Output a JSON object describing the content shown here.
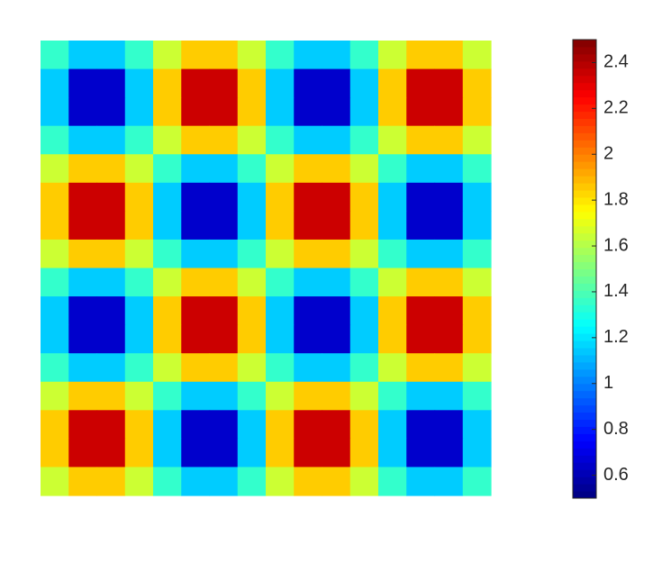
{
  "chart_data": {
    "type": "heatmap",
    "colormap": "jet",
    "clim": [
      0.5,
      2.5
    ],
    "cticks": [
      0.6,
      0.8,
      1,
      1.2,
      1.4,
      1.6,
      1.8,
      2,
      2.2,
      2.4
    ],
    "z": [
      [
        1.35,
        1.15,
        1.15,
        1.35,
        1.65,
        1.85,
        1.85,
        1.65,
        1.35,
        1.15,
        1.15,
        1.35,
        1.65,
        1.85,
        1.85,
        1.65
      ],
      [
        1.15,
        0.65,
        0.65,
        1.15,
        1.85,
        2.35,
        2.35,
        1.85,
        1.15,
        0.65,
        0.65,
        1.15,
        1.85,
        2.35,
        2.35,
        1.85
      ],
      [
        1.15,
        0.65,
        0.65,
        1.15,
        1.85,
        2.35,
        2.35,
        1.85,
        1.15,
        0.65,
        0.65,
        1.15,
        1.85,
        2.35,
        2.35,
        1.85
      ],
      [
        1.35,
        1.15,
        1.15,
        1.35,
        1.65,
        1.85,
        1.85,
        1.65,
        1.35,
        1.15,
        1.15,
        1.35,
        1.65,
        1.85,
        1.85,
        1.65
      ],
      [
        1.65,
        1.85,
        1.85,
        1.65,
        1.35,
        1.15,
        1.15,
        1.35,
        1.65,
        1.85,
        1.85,
        1.65,
        1.35,
        1.15,
        1.15,
        1.35
      ],
      [
        1.85,
        2.35,
        2.35,
        1.85,
        1.15,
        0.65,
        0.65,
        1.15,
        1.85,
        2.35,
        2.35,
        1.85,
        1.15,
        0.65,
        0.65,
        1.15
      ],
      [
        1.85,
        2.35,
        2.35,
        1.85,
        1.15,
        0.65,
        0.65,
        1.15,
        1.85,
        2.35,
        2.35,
        1.85,
        1.15,
        0.65,
        0.65,
        1.15
      ],
      [
        1.65,
        1.85,
        1.85,
        1.65,
        1.35,
        1.15,
        1.15,
        1.35,
        1.65,
        1.85,
        1.85,
        1.65,
        1.35,
        1.15,
        1.15,
        1.35
      ],
      [
        1.35,
        1.15,
        1.15,
        1.35,
        1.65,
        1.85,
        1.85,
        1.65,
        1.35,
        1.15,
        1.15,
        1.35,
        1.65,
        1.85,
        1.85,
        1.65
      ],
      [
        1.15,
        0.65,
        0.65,
        1.15,
        1.85,
        2.35,
        2.35,
        1.85,
        1.15,
        0.65,
        0.65,
        1.15,
        1.85,
        2.35,
        2.35,
        1.85
      ],
      [
        1.15,
        0.65,
        0.65,
        1.15,
        1.85,
        2.35,
        2.35,
        1.85,
        1.15,
        0.65,
        0.65,
        1.15,
        1.85,
        2.35,
        2.35,
        1.85
      ],
      [
        1.35,
        1.15,
        1.15,
        1.35,
        1.65,
        1.85,
        1.85,
        1.65,
        1.35,
        1.15,
        1.15,
        1.35,
        1.65,
        1.85,
        1.85,
        1.65
      ],
      [
        1.65,
        1.85,
        1.85,
        1.65,
        1.35,
        1.15,
        1.15,
        1.35,
        1.65,
        1.85,
        1.85,
        1.65,
        1.35,
        1.15,
        1.15,
        1.35
      ],
      [
        1.85,
        2.35,
        2.35,
        1.85,
        1.15,
        0.65,
        0.65,
        1.15,
        1.85,
        2.35,
        2.35,
        1.85,
        1.15,
        0.65,
        0.65,
        1.15
      ],
      [
        1.85,
        2.35,
        2.35,
        1.85,
        1.15,
        0.65,
        0.65,
        1.15,
        1.85,
        2.35,
        2.35,
        1.85,
        1.15,
        0.65,
        0.65,
        1.15
      ],
      [
        1.65,
        1.85,
        1.85,
        1.65,
        1.35,
        1.15,
        1.15,
        1.35,
        1.65,
        1.85,
        1.85,
        1.65,
        1.35,
        1.15,
        1.15,
        1.35
      ]
    ]
  }
}
